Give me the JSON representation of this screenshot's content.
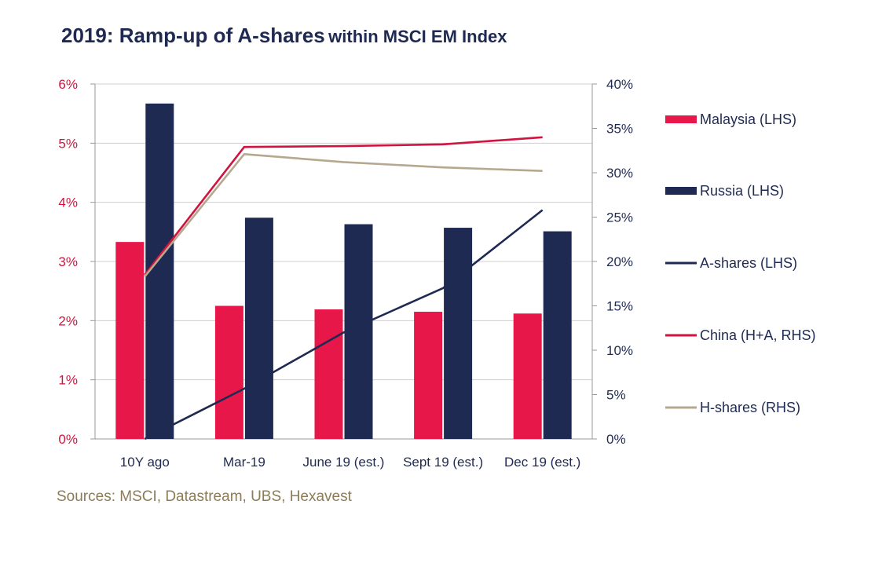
{
  "title_main": "2019: Ramp-up of A-shares",
  "title_sub": "within MSCI EM Index",
  "source": "Sources: MSCI, Datastream, UBS, Hexavest",
  "colors": {
    "malaysia": "#e8174a",
    "russia": "#1f2a52",
    "a_shares": "#1f2a52",
    "china": "#d0143f",
    "h_shares": "#b5a88f",
    "left_axis_text": "#d0143f",
    "right_axis_text": "#1f2a52",
    "grid": "#cfcfcf",
    "source_text": "#8c7b57"
  },
  "chart_data": {
    "type": "bar",
    "title": "2019: Ramp-up of A-shares within MSCI EM Index",
    "categories": [
      "10Y ago",
      "Mar-19",
      "June 19 (est.)",
      "Sept 19 (est.)",
      "Dec 19 (est.)"
    ],
    "left_axis": {
      "ylim": [
        0,
        6
      ],
      "ticks": [
        "0%",
        "1%",
        "2%",
        "3%",
        "4%",
        "5%",
        "6%"
      ]
    },
    "right_axis": {
      "ylim": [
        0,
        40
      ],
      "ticks": [
        "0%",
        "5%",
        "10%",
        "15%",
        "20%",
        "25%",
        "30%",
        "35%",
        "40%"
      ]
    },
    "grid": true,
    "legend_position": "right",
    "bar_series": [
      {
        "name": "Malaysia (LHS)",
        "axis": "left",
        "values": [
          3.33,
          2.25,
          2.19,
          2.15,
          2.12
        ]
      },
      {
        "name": "Russia (LHS)",
        "axis": "left",
        "values": [
          5.67,
          3.74,
          3.63,
          3.57,
          3.51
        ]
      }
    ],
    "line_series": [
      {
        "name": "A-shares (LHS)",
        "axis": "left",
        "values": [
          0.0,
          0.85,
          1.8,
          2.55,
          3.87
        ]
      },
      {
        "name": "China (H+A, RHS)",
        "axis": "right",
        "values": [
          18.5,
          32.9,
          33.0,
          33.2,
          34.0
        ]
      },
      {
        "name": "H-shares (RHS)",
        "axis": "right",
        "values": [
          18.3,
          32.1,
          31.2,
          30.6,
          30.2
        ]
      }
    ]
  }
}
